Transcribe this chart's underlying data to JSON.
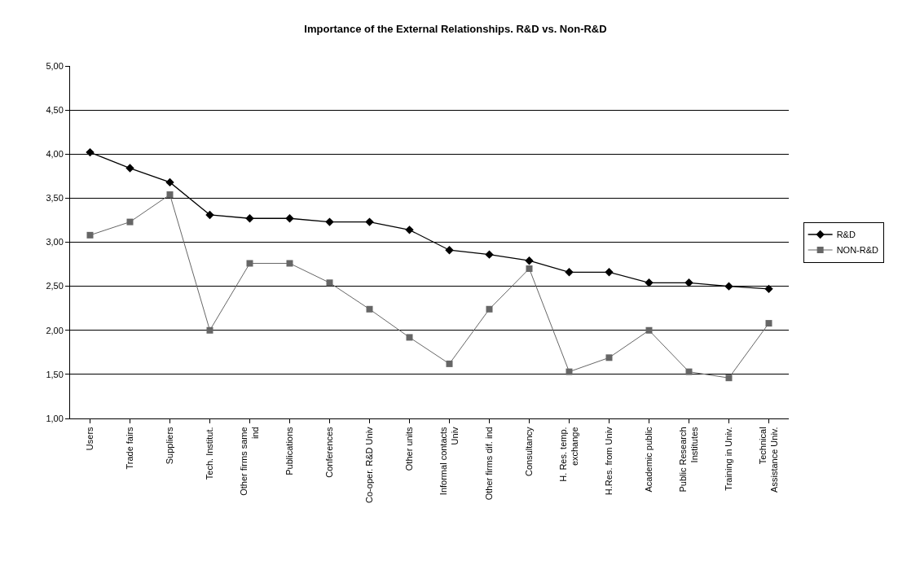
{
  "chart_data": {
    "type": "line",
    "title": "Importance of the External Relationships. R&D vs. Non-R&D",
    "categories": [
      "Users",
      "Trade fairs",
      "Suppliers",
      "Tech. Institut.",
      "Other firms same\nind",
      "Publications",
      "Conferences",
      "Co-oper. R&D Univ",
      "Other units",
      "Informal contacts\nUniv",
      "Other firms dif. ind",
      "Consultancy",
      "H. Res. temp.\nexchange",
      "H.Res. from Univ",
      "Academic public",
      "Public Research\nInstitutes",
      "Training in Univ.",
      "Technical\nAssistance Univ."
    ],
    "series": [
      {
        "name": "R&D",
        "color": "#000000",
        "marker": "diamond",
        "values": [
          4.02,
          3.84,
          3.68,
          3.31,
          3.27,
          3.27,
          3.23,
          3.23,
          3.14,
          2.91,
          2.86,
          2.79,
          2.66,
          2.66,
          2.54,
          2.54,
          2.5,
          2.47
        ]
      },
      {
        "name": "NON-R&D",
        "color": "#666666",
        "marker": "square",
        "values": [
          3.08,
          3.23,
          3.54,
          2.0,
          2.76,
          2.76,
          2.54,
          2.24,
          1.92,
          1.62,
          2.24,
          2.7,
          1.53,
          1.69,
          2.0,
          1.53,
          1.46,
          2.08
        ]
      }
    ],
    "ylim": [
      1,
      5
    ],
    "yticks": [
      {
        "value": 1,
        "label": "1,00"
      },
      {
        "value": 1.5,
        "label": "1,50"
      },
      {
        "value": 2,
        "label": "2,00"
      },
      {
        "value": 2.5,
        "label": "2,50"
      },
      {
        "value": 3,
        "label": "3,00"
      },
      {
        "value": 3.5,
        "label": "3,50"
      },
      {
        "value": 4,
        "label": "4,00"
      },
      {
        "value": 4.5,
        "label": "4,50"
      },
      {
        "value": 5,
        "label": "5,00"
      }
    ],
    "grid": "y",
    "legend": "right",
    "line_style": "solid"
  }
}
